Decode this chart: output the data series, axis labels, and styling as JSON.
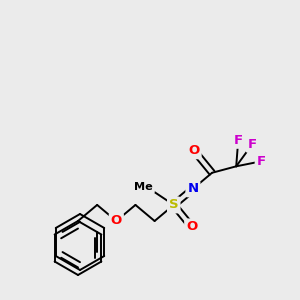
{
  "background_color": "#ebebeb",
  "bond_color": "#000000",
  "atom_colors": {
    "F": "#cc00cc",
    "O": "#ff0000",
    "N": "#0000ee",
    "S": "#bbbb00",
    "C": "#000000"
  },
  "figsize": [
    3.0,
    3.0
  ],
  "dpi": 100,
  "bond_lw": 1.4,
  "fs": 9.5
}
